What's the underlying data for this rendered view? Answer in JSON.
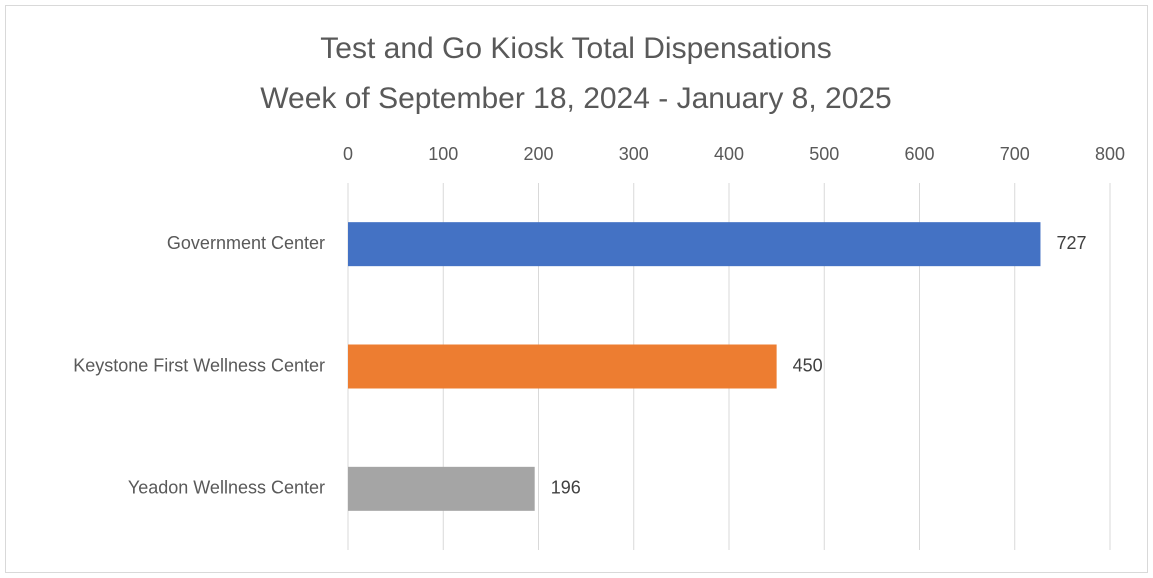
{
  "chart_data": {
    "type": "bar",
    "orientation": "horizontal",
    "title": "Test and Go Kiosk Total Dispensations",
    "subtitle": "Week of September 18, 2024 - January 8, 2025",
    "categories": [
      "Government Center",
      "Keystone First Wellness Center",
      "Yeadon Wellness Center"
    ],
    "values": [
      727,
      450,
      196
    ],
    "colors": [
      "#4472c4",
      "#ed7d31",
      "#a5a5a5"
    ],
    "xlim": [
      0,
      800
    ],
    "xticks": [
      0,
      100,
      200,
      300,
      400,
      500,
      600,
      700,
      800
    ],
    "grid": true,
    "data_labels": true
  }
}
